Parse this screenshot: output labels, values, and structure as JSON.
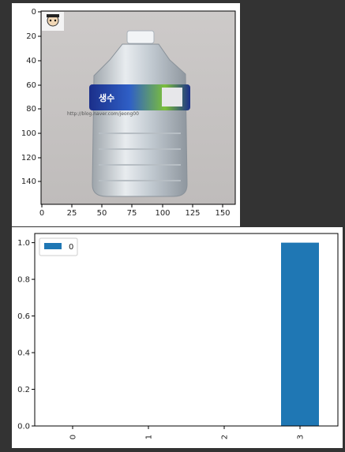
{
  "image_panel": {
    "x_ticks": [
      "0",
      "25",
      "50",
      "75",
      "100",
      "125",
      "150"
    ],
    "y_ticks": [
      "0",
      "20",
      "40",
      "60",
      "80",
      "100",
      "120",
      "140"
    ],
    "image_label_text": "생수",
    "watermark": "http://blog.naver.com/jeong00"
  },
  "chart_data": {
    "type": "bar",
    "categories": [
      "0",
      "1",
      "2",
      "3"
    ],
    "series": [
      {
        "name": "0",
        "values": [
          0,
          0,
          0,
          1.0
        ]
      }
    ],
    "ylim": [
      0,
      1.05
    ],
    "y_ticks": [
      "0.0",
      "0.2",
      "0.4",
      "0.6",
      "0.8",
      "1.0"
    ],
    "legend": {
      "position": "top-left",
      "label": "0"
    },
    "colors": {
      "bar": "#1f77b4"
    },
    "grid": false
  }
}
